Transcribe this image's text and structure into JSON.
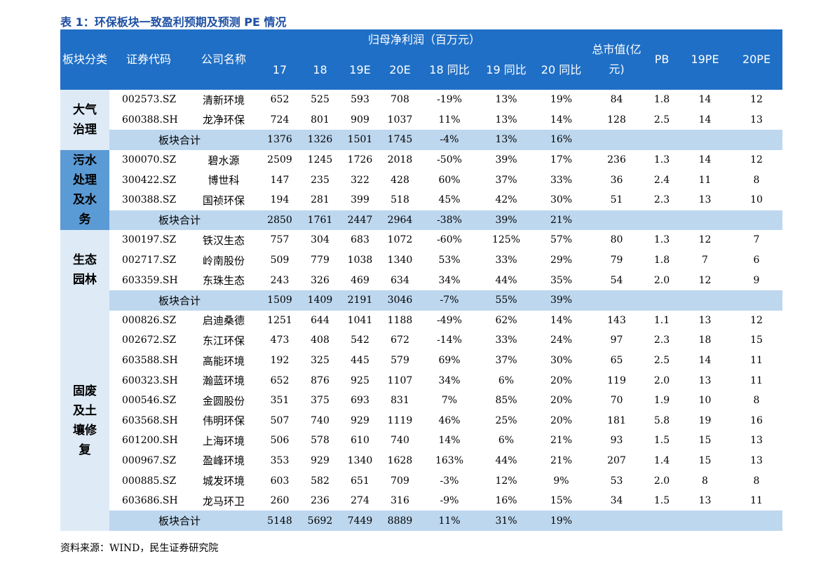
{
  "title": "表 1：环保板块一致盈利预期及预测 PE 情况",
  "headers": {
    "sector": "板块分类",
    "code": "证券代码",
    "name": "公司名称",
    "profit_group": "归母净利润（百万元）",
    "profit_cols": [
      "17",
      "18",
      "19E",
      "20E",
      "18 同比",
      "19 同比",
      "20 同比"
    ],
    "mktcap": "总市值(亿元)",
    "pb": "PB",
    "pe19": "19PE",
    "pe20": "20PE"
  },
  "subtotal_label": "板块合计",
  "sectors": [
    {
      "name": "大气治理",
      "rows": [
        [
          "002573.SZ",
          "清新环境",
          "652",
          "525",
          "593",
          "708",
          "-19%",
          "13%",
          "19%",
          "84",
          "1.8",
          "14",
          "12"
        ],
        [
          "600388.SH",
          "龙净环保",
          "724",
          "801",
          "909",
          "1037",
          "11%",
          "13%",
          "14%",
          "128",
          "2.5",
          "14",
          "13"
        ]
      ],
      "total": [
        "1376",
        "1326",
        "1501",
        "1745",
        "-4%",
        "13%",
        "16%"
      ]
    },
    {
      "name": "污水处理及水务",
      "rows": [
        [
          "300070.SZ",
          "碧水源",
          "2509",
          "1245",
          "1726",
          "2018",
          "-50%",
          "39%",
          "17%",
          "236",
          "1.3",
          "14",
          "12"
        ],
        [
          "300422.SZ",
          "博世科",
          "147",
          "235",
          "322",
          "428",
          "60%",
          "37%",
          "33%",
          "36",
          "2.4",
          "11",
          "8"
        ],
        [
          "300388.SZ",
          "国祯环保",
          "194",
          "281",
          "399",
          "518",
          "45%",
          "42%",
          "30%",
          "51",
          "2.3",
          "13",
          "10"
        ]
      ],
      "total": [
        "2850",
        "1761",
        "2447",
        "2964",
        "-38%",
        "39%",
        "21%"
      ]
    },
    {
      "name": "生态园林",
      "rows": [
        [
          "300197.SZ",
          "铁汉生态",
          "757",
          "304",
          "683",
          "1072",
          "-60%",
          "125%",
          "57%",
          "80",
          "1.3",
          "12",
          "7"
        ],
        [
          "002717.SZ",
          "岭南股份",
          "509",
          "779",
          "1038",
          "1340",
          "53%",
          "33%",
          "29%",
          "79",
          "1.8",
          "7",
          "6"
        ],
        [
          "603359.SH",
          "东珠生态",
          "243",
          "326",
          "469",
          "634",
          "34%",
          "44%",
          "35%",
          "54",
          "2.0",
          "12",
          "9"
        ]
      ],
      "total": [
        "1509",
        "1409",
        "2191",
        "3046",
        "-7%",
        "55%",
        "39%"
      ]
    },
    {
      "name": "固废及土壤修复",
      "rows": [
        [
          "000826.SZ",
          "启迪桑德",
          "1251",
          "644",
          "1041",
          "1188",
          "-49%",
          "62%",
          "14%",
          "143",
          "1.1",
          "13",
          "12"
        ],
        [
          "002672.SZ",
          "东江环保",
          "473",
          "408",
          "542",
          "672",
          "-14%",
          "33%",
          "24%",
          "97",
          "2.3",
          "18",
          "15"
        ],
        [
          "603588.SH",
          "高能环境",
          "192",
          "325",
          "445",
          "579",
          "69%",
          "37%",
          "30%",
          "65",
          "2.5",
          "14",
          "11"
        ],
        [
          "600323.SH",
          "瀚蓝环境",
          "652",
          "876",
          "925",
          "1107",
          "34%",
          "6%",
          "20%",
          "119",
          "2.0",
          "13",
          "11"
        ],
        [
          "000546.SZ",
          "金圆股份",
          "351",
          "375",
          "693",
          "831",
          "7%",
          "85%",
          "20%",
          "70",
          "1.9",
          "10",
          "8"
        ],
        [
          "603568.SH",
          "伟明环保",
          "507",
          "740",
          "929",
          "1119",
          "46%",
          "25%",
          "20%",
          "181",
          "5.8",
          "19",
          "16"
        ],
        [
          "601200.SH",
          "上海环境",
          "506",
          "578",
          "610",
          "740",
          "14%",
          "6%",
          "21%",
          "93",
          "1.5",
          "15",
          "13"
        ],
        [
          "000967.SZ",
          "盈峰环境",
          "353",
          "929",
          "1340",
          "1628",
          "163%",
          "44%",
          "21%",
          "207",
          "1.4",
          "15",
          "13"
        ],
        [
          "000885.SZ",
          "城发环境",
          "603",
          "582",
          "651",
          "709",
          "-3%",
          "12%",
          "9%",
          "53",
          "2.0",
          "8",
          "8"
        ],
        [
          "603686.SH",
          "龙马环卫",
          "260",
          "236",
          "274",
          "316",
          "-9%",
          "16%",
          "15%",
          "34",
          "1.5",
          "13",
          "11"
        ]
      ],
      "total": [
        "5148",
        "5692",
        "7449",
        "8889",
        "11%",
        "31%",
        "19%"
      ]
    }
  ],
  "source": "资料来源：WIND，民生证券研究院",
  "colors": {
    "header_bg": "#1f6fc6",
    "title": "#1d4fa3",
    "subtotal_bg": "#bdd7ee",
    "sector_light": "#deebf7",
    "sector_mid": "#5b9bd5"
  }
}
